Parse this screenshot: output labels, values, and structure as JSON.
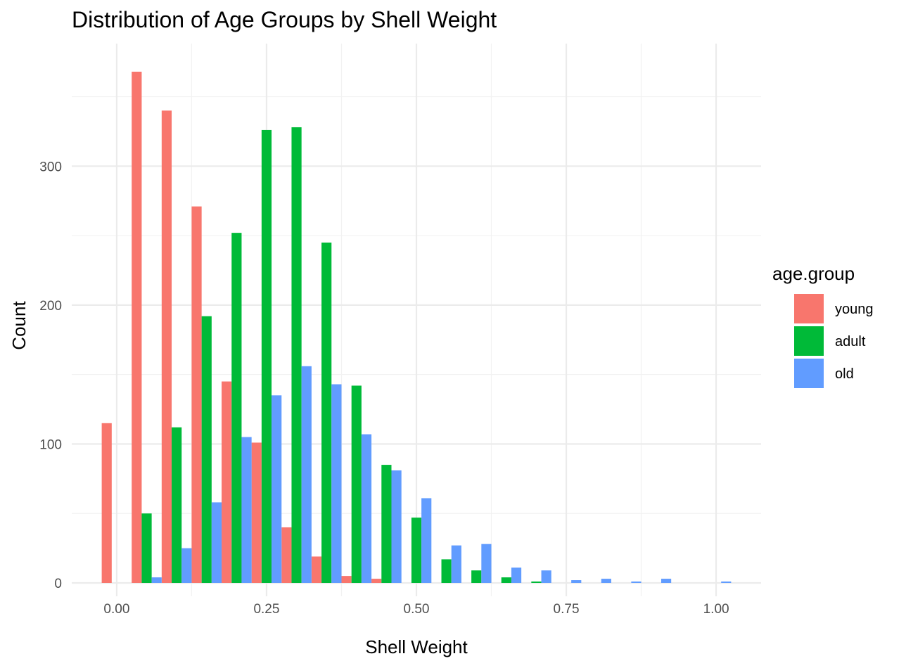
{
  "chart_data": {
    "type": "bar",
    "title": "Distribution of Age Groups by Shell Weight",
    "xlabel": "Shell Weight",
    "ylabel": "Count",
    "xlim": [
      -0.075,
      1.075
    ],
    "ylim": [
      0,
      370
    ],
    "x_ticks": [
      0.0,
      0.25,
      0.5,
      0.75,
      1.0
    ],
    "x_tick_labels": [
      "0.00",
      "0.25",
      "0.50",
      "0.75",
      "1.00"
    ],
    "y_ticks": [
      0,
      100,
      200,
      300
    ],
    "y_tick_labels": [
      "0",
      "100",
      "200",
      "300"
    ],
    "grid": true,
    "legend": {
      "title": "age.group",
      "position": "right"
    },
    "bin_centers": [
      0.0,
      0.05,
      0.1,
      0.15,
      0.2,
      0.25,
      0.3,
      0.35,
      0.4,
      0.45,
      0.5,
      0.55,
      0.6,
      0.65,
      0.7,
      0.75,
      0.8,
      0.85,
      0.9,
      0.95,
      1.0
    ],
    "series": [
      {
        "name": "young",
        "color": "#F8766D",
        "values": [
          115,
          368,
          340,
          271,
          145,
          101,
          40,
          19,
          5,
          3,
          0,
          0,
          0,
          0,
          0,
          0,
          0,
          0,
          0,
          0,
          0
        ]
      },
      {
        "name": "adult",
        "color": "#00BA38",
        "values": [
          0,
          50,
          112,
          192,
          252,
          326,
          328,
          245,
          142,
          85,
          47,
          17,
          9,
          4,
          1,
          0,
          0,
          0,
          0,
          0,
          0
        ]
      },
      {
        "name": "old",
        "color": "#619CFF",
        "values": [
          0,
          4,
          25,
          58,
          105,
          135,
          156,
          143,
          107,
          81,
          61,
          27,
          28,
          11,
          9,
          2,
          3,
          1,
          3,
          0,
          1
        ]
      }
    ]
  }
}
